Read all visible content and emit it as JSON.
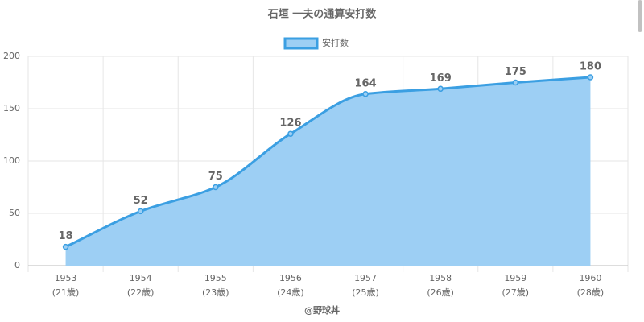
{
  "chart_data": {
    "type": "area",
    "title": "石垣 一夫の通算安打数",
    "categories": [
      [
        "1953",
        "(21歳)"
      ],
      [
        "1954",
        "(22歳)"
      ],
      [
        "1955",
        "(23歳)"
      ],
      [
        "1956",
        "(24歳)"
      ],
      [
        "1957",
        "(25歳)"
      ],
      [
        "1958",
        "(26歳)"
      ],
      [
        "1959",
        "(27歳)"
      ],
      [
        "1960",
        "(28歳)"
      ]
    ],
    "series": [
      {
        "name": "安打数",
        "color": "#3b9fe2",
        "fill": "#9dcff4",
        "values": [
          18,
          52,
          75,
          126,
          164,
          169,
          175,
          180
        ]
      }
    ],
    "ylim": [
      0,
      200
    ],
    "yticks": [
      0,
      50,
      100,
      150,
      200
    ],
    "grid": true,
    "legend": "top",
    "credit": "@野球丼"
  }
}
